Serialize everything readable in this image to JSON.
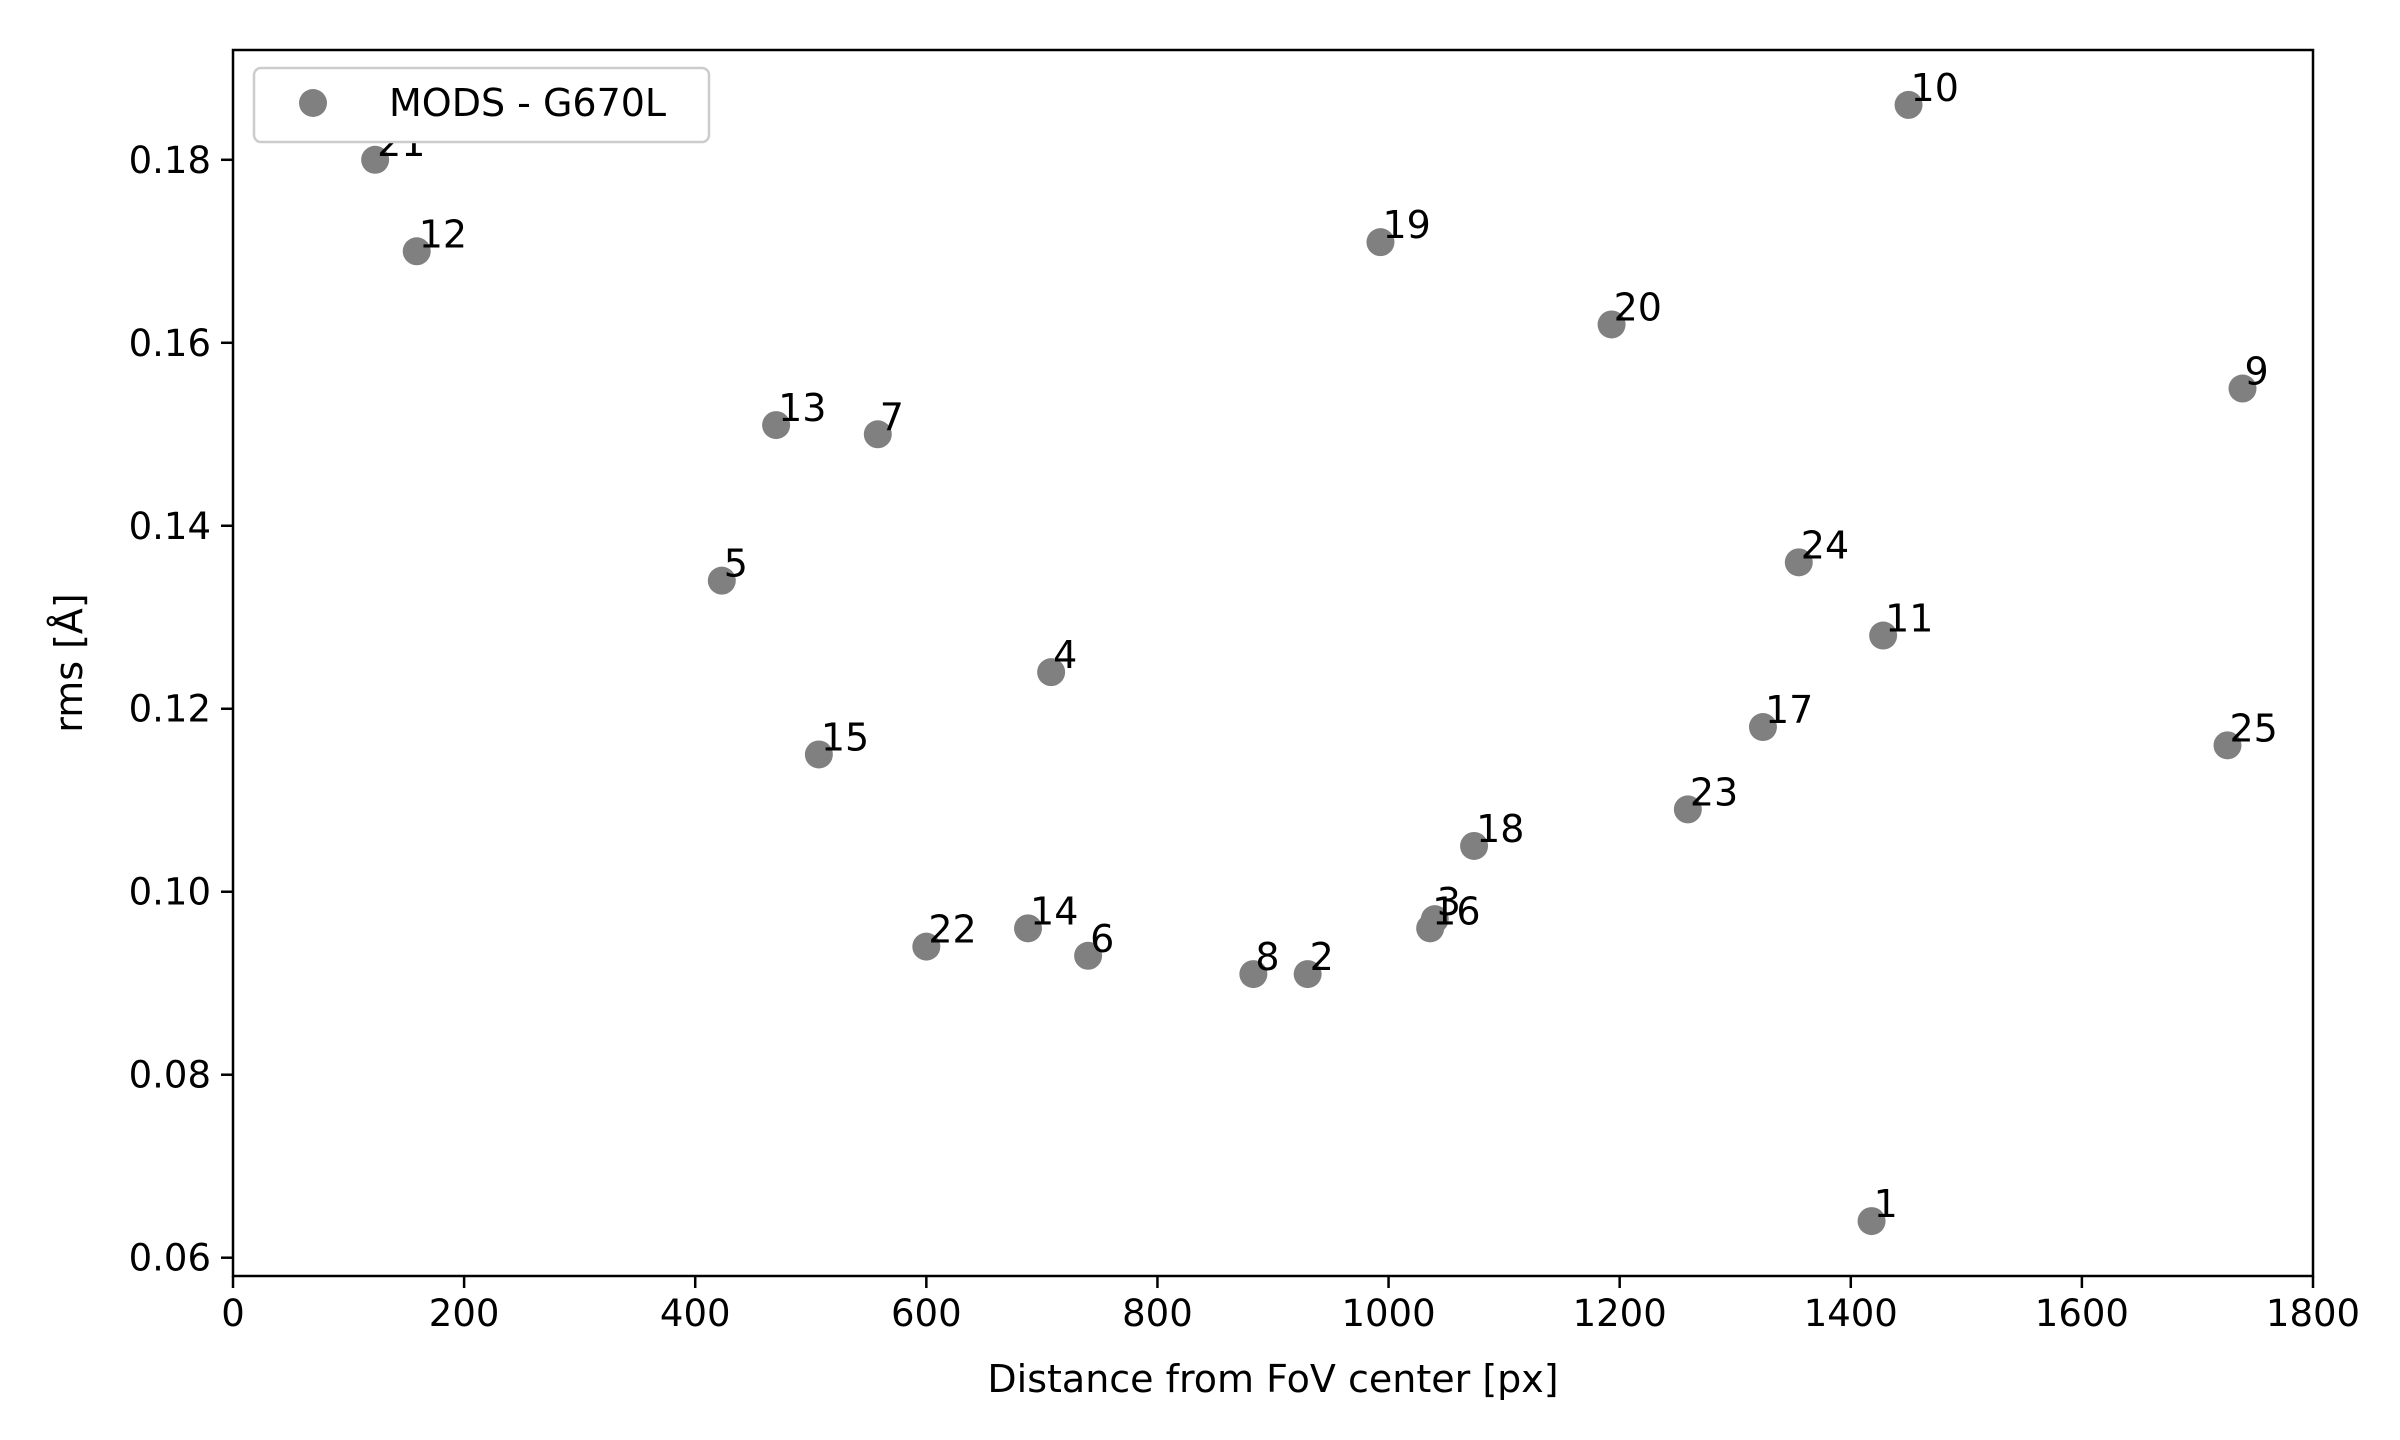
{
  "chart_data": {
    "type": "scatter",
    "title": "",
    "xlabel": "Distance from FoV center [px]",
    "ylabel": "rms [Å]",
    "xlim": [
      0,
      1800
    ],
    "ylim": [
      0.058,
      0.192
    ],
    "xticks": [
      0,
      200,
      400,
      600,
      800,
      1000,
      1200,
      1400,
      1600,
      1800
    ],
    "yticks": [
      0.06,
      0.08,
      0.1,
      0.12,
      0.14,
      0.16,
      0.18
    ],
    "xtick_labels": [
      "0",
      "200",
      "400",
      "600",
      "800",
      "1000",
      "1200",
      "1400",
      "1600",
      "1800"
    ],
    "ytick_labels": [
      "0.06",
      "0.08",
      "0.10",
      "0.12",
      "0.14",
      "0.16",
      "0.18"
    ],
    "grid": false,
    "legend": {
      "placement": "top-left",
      "entries": [
        "MODS - G670L"
      ]
    },
    "series": [
      {
        "name": "MODS - G670L",
        "color": "#808080",
        "points": [
          {
            "label": "1",
            "x": 1418,
            "y": 0.064
          },
          {
            "label": "2",
            "x": 930,
            "y": 0.091
          },
          {
            "label": "3",
            "x": 1040,
            "y": 0.097
          },
          {
            "label": "4",
            "x": 708,
            "y": 0.124
          },
          {
            "label": "5",
            "x": 423,
            "y": 0.134
          },
          {
            "label": "6",
            "x": 740,
            "y": 0.093
          },
          {
            "label": "7",
            "x": 558,
            "y": 0.15
          },
          {
            "label": "8",
            "x": 883,
            "y": 0.091
          },
          {
            "label": "9",
            "x": 1739,
            "y": 0.155
          },
          {
            "label": "10",
            "x": 1450,
            "y": 0.186
          },
          {
            "label": "11",
            "x": 1428,
            "y": 0.128
          },
          {
            "label": "12",
            "x": 159,
            "y": 0.17
          },
          {
            "label": "13",
            "x": 470,
            "y": 0.151
          },
          {
            "label": "14",
            "x": 688,
            "y": 0.096
          },
          {
            "label": "15",
            "x": 507,
            "y": 0.115
          },
          {
            "label": "16",
            "x": 1036,
            "y": 0.096
          },
          {
            "label": "17",
            "x": 1324,
            "y": 0.118
          },
          {
            "label": "18",
            "x": 1074,
            "y": 0.105
          },
          {
            "label": "19",
            "x": 993,
            "y": 0.171
          },
          {
            "label": "20",
            "x": 1193,
            "y": 0.162
          },
          {
            "label": "21",
            "x": 123,
            "y": 0.18
          },
          {
            "label": "22",
            "x": 600,
            "y": 0.094
          },
          {
            "label": "23",
            "x": 1259,
            "y": 0.109
          },
          {
            "label": "24",
            "x": 1355,
            "y": 0.136
          },
          {
            "label": "25",
            "x": 1726,
            "y": 0.116
          }
        ]
      }
    ]
  }
}
